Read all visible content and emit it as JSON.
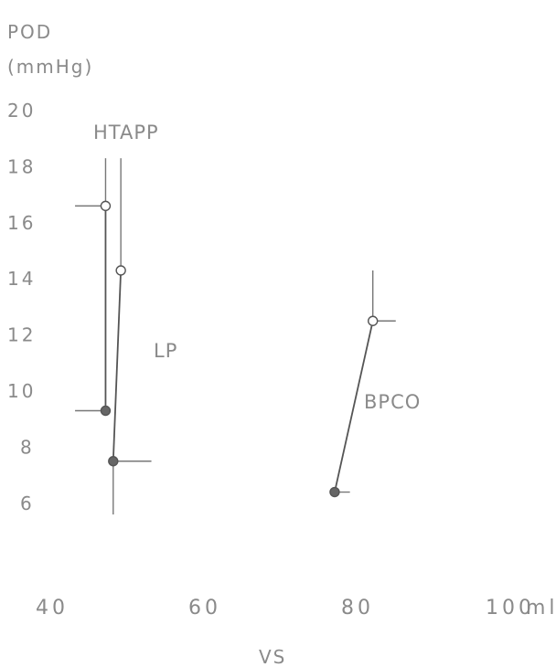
{
  "chart_data": {
    "type": "line",
    "ylabel_line1": "POD",
    "ylabel_line2": "(mmHg)",
    "xlabel": "VS",
    "x_unit": "ml",
    "ylim": [
      6,
      20
    ],
    "xlim": [
      40,
      100
    ],
    "y_ticks": [
      "20",
      "18",
      "16",
      "14",
      "12",
      "10",
      "8",
      "6"
    ],
    "x_ticks": [
      "40",
      "60",
      "80",
      "100"
    ],
    "grid": false,
    "series": [
      {
        "name": "HTAPP",
        "x": [
          47,
          47
        ],
        "y": [
          16.6,
          9.3
        ],
        "x_err": [
          [
            43,
            47
          ],
          [
            43,
            47
          ]
        ],
        "y_err": [
          [
            18.3,
            16.6
          ],
          [
            9.3,
            9.3
          ]
        ]
      },
      {
        "name": "LP",
        "x": [
          49,
          48
        ],
        "y": [
          14.3,
          7.5
        ],
        "y_err": [
          [
            18.3,
            14.3
          ],
          [
            7.5,
            5.6
          ]
        ],
        "x_err": [
          [
            49,
            49
          ],
          [
            48,
            53
          ]
        ]
      },
      {
        "name": "BPCO",
        "x": [
          82,
          77
        ],
        "y": [
          12.5,
          6.4
        ],
        "y_err": [
          [
            14.3,
            12.5
          ],
          [
            6.4,
            6.4
          ]
        ],
        "x_err": [
          [
            82,
            85
          ],
          [
            77,
            79
          ]
        ]
      }
    ]
  }
}
